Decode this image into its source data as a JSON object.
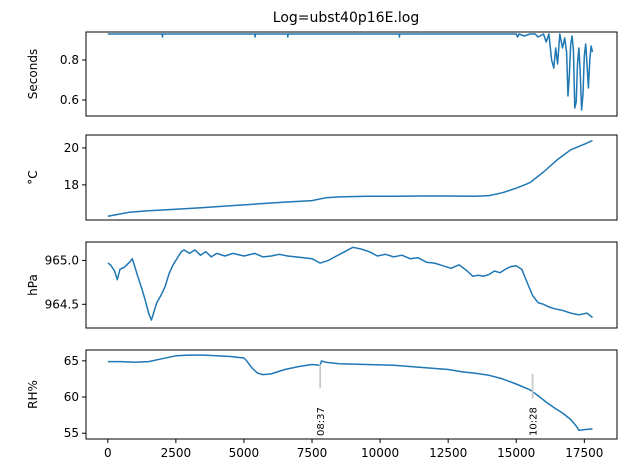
{
  "chart_data": {
    "title": "Log=ubst40p16E.log",
    "x_ticks": [
      0,
      2500,
      5000,
      7500,
      10000,
      12500,
      15000,
      17500
    ],
    "xlim": [
      -800,
      18700
    ],
    "panels": [
      {
        "type": "line",
        "ylabel": "Seconds",
        "ylim": [
          0.52,
          0.94
        ],
        "y_ticks": [
          0.6,
          0.8
        ],
        "y_tick_labels": [
          "0.6",
          "0.8"
        ],
        "points": [
          [
            0,
            0.93
          ],
          [
            2000,
            0.93
          ],
          [
            2010,
            0.915
          ],
          [
            2020,
            0.93
          ],
          [
            5400,
            0.93
          ],
          [
            5410,
            0.915
          ],
          [
            5420,
            0.93
          ],
          [
            6600,
            0.93
          ],
          [
            6610,
            0.915
          ],
          [
            6620,
            0.93
          ],
          [
            10700,
            0.93
          ],
          [
            10710,
            0.915
          ],
          [
            10720,
            0.93
          ],
          [
            15000,
            0.93
          ],
          [
            15050,
            0.915
          ],
          [
            15100,
            0.93
          ],
          [
            15300,
            0.92
          ],
          [
            15500,
            0.93
          ],
          [
            15700,
            0.93
          ],
          [
            15800,
            0.915
          ],
          [
            16000,
            0.93
          ],
          [
            16100,
            0.89
          ],
          [
            16200,
            0.93
          ],
          [
            16300,
            0.8
          ],
          [
            16380,
            0.76
          ],
          [
            16450,
            0.86
          ],
          [
            16520,
            0.78
          ],
          [
            16600,
            0.93
          ],
          [
            16700,
            0.86
          ],
          [
            16780,
            0.91
          ],
          [
            16850,
            0.84
          ],
          [
            16900,
            0.62
          ],
          [
            16950,
            0.72
          ],
          [
            17000,
            0.88
          ],
          [
            17050,
            0.92
          ],
          [
            17100,
            0.85
          ],
          [
            17150,
            0.56
          ],
          [
            17200,
            0.59
          ],
          [
            17250,
            0.78
          ],
          [
            17300,
            0.86
          ],
          [
            17350,
            0.74
          ],
          [
            17400,
            0.55
          ],
          [
            17450,
            0.63
          ],
          [
            17500,
            0.82
          ],
          [
            17550,
            0.88
          ],
          [
            17600,
            0.78
          ],
          [
            17650,
            0.66
          ],
          [
            17700,
            0.8
          ],
          [
            17750,
            0.87
          ],
          [
            17800,
            0.84
          ]
        ]
      },
      {
        "type": "line",
        "ylabel": "°C",
        "ylim": [
          16.1,
          20.7
        ],
        "y_ticks": [
          18,
          20
        ],
        "y_tick_labels": [
          "18",
          "20"
        ],
        "points": [
          [
            0,
            16.3
          ],
          [
            300,
            16.38
          ],
          [
            800,
            16.52
          ],
          [
            1500,
            16.6
          ],
          [
            2500,
            16.68
          ],
          [
            3500,
            16.77
          ],
          [
            4500,
            16.87
          ],
          [
            5500,
            16.97
          ],
          [
            6500,
            17.07
          ],
          [
            7500,
            17.15
          ],
          [
            8000,
            17.3
          ],
          [
            8500,
            17.35
          ],
          [
            9500,
            17.38
          ],
          [
            10500,
            17.38
          ],
          [
            11500,
            17.4
          ],
          [
            12500,
            17.4
          ],
          [
            13500,
            17.38
          ],
          [
            14000,
            17.42
          ],
          [
            14500,
            17.58
          ],
          [
            15000,
            17.82
          ],
          [
            15500,
            18.12
          ],
          [
            16000,
            18.7
          ],
          [
            16500,
            19.35
          ],
          [
            17000,
            19.9
          ],
          [
            17500,
            20.2
          ],
          [
            17800,
            20.4
          ]
        ]
      },
      {
        "type": "line",
        "ylabel": "hPa",
        "ylim": [
          964.23,
          965.21
        ],
        "y_ticks": [
          964.5,
          965.0
        ],
        "y_tick_labels": [
          "964.5",
          "965.0"
        ],
        "points": [
          [
            0,
            964.97
          ],
          [
            100,
            964.95
          ],
          [
            250,
            964.88
          ],
          [
            350,
            964.78
          ],
          [
            450,
            964.9
          ],
          [
            600,
            964.92
          ],
          [
            800,
            964.98
          ],
          [
            900,
            965.02
          ],
          [
            1000,
            964.92
          ],
          [
            1100,
            964.82
          ],
          [
            1250,
            964.68
          ],
          [
            1400,
            964.52
          ],
          [
            1500,
            964.4
          ],
          [
            1600,
            964.32
          ],
          [
            1700,
            964.42
          ],
          [
            1800,
            964.52
          ],
          [
            1950,
            964.6
          ],
          [
            2100,
            964.7
          ],
          [
            2250,
            964.85
          ],
          [
            2400,
            964.95
          ],
          [
            2600,
            965.05
          ],
          [
            2700,
            965.1
          ],
          [
            2800,
            965.12
          ],
          [
            3000,
            965.08
          ],
          [
            3200,
            965.12
          ],
          [
            3400,
            965.06
          ],
          [
            3600,
            965.1
          ],
          [
            3800,
            965.04
          ],
          [
            4000,
            965.08
          ],
          [
            4300,
            965.05
          ],
          [
            4600,
            965.08
          ],
          [
            5000,
            965.05
          ],
          [
            5400,
            965.08
          ],
          [
            5700,
            965.04
          ],
          [
            6000,
            965.05
          ],
          [
            6300,
            965.07
          ],
          [
            6600,
            965.05
          ],
          [
            6900,
            965.04
          ],
          [
            7200,
            965.03
          ],
          [
            7500,
            965.02
          ],
          [
            7800,
            964.97
          ],
          [
            8100,
            965.0
          ],
          [
            8400,
            965.05
          ],
          [
            8700,
            965.1
          ],
          [
            9000,
            965.15
          ],
          [
            9300,
            965.13
          ],
          [
            9600,
            965.1
          ],
          [
            9900,
            965.05
          ],
          [
            10200,
            965.07
          ],
          [
            10500,
            965.04
          ],
          [
            10800,
            965.06
          ],
          [
            11100,
            965.02
          ],
          [
            11400,
            965.03
          ],
          [
            11700,
            964.98
          ],
          [
            12000,
            964.97
          ],
          [
            12300,
            964.94
          ],
          [
            12600,
            964.91
          ],
          [
            12900,
            964.95
          ],
          [
            13200,
            964.88
          ],
          [
            13400,
            964.82
          ],
          [
            13600,
            964.83
          ],
          [
            13800,
            964.82
          ],
          [
            14000,
            964.84
          ],
          [
            14200,
            964.88
          ],
          [
            14400,
            964.86
          ],
          [
            14600,
            964.9
          ],
          [
            14800,
            964.93
          ],
          [
            15000,
            964.94
          ],
          [
            15200,
            964.9
          ],
          [
            15400,
            964.75
          ],
          [
            15600,
            964.6
          ],
          [
            15800,
            964.52
          ],
          [
            16000,
            964.5
          ],
          [
            16200,
            964.47
          ],
          [
            16400,
            964.45
          ],
          [
            16700,
            964.43
          ],
          [
            17000,
            964.4
          ],
          [
            17300,
            964.38
          ],
          [
            17600,
            964.4
          ],
          [
            17800,
            964.35
          ]
        ]
      },
      {
        "type": "line",
        "ylabel": "RH%",
        "ylim": [
          54.2,
          66.5
        ],
        "y_ticks": [
          55,
          60,
          65
        ],
        "y_tick_labels": [
          "55",
          "60",
          "65"
        ],
        "points": [
          [
            0,
            64.9
          ],
          [
            500,
            64.9
          ],
          [
            1000,
            64.8
          ],
          [
            1500,
            64.9
          ],
          [
            2000,
            65.3
          ],
          [
            2500,
            65.7
          ],
          [
            3000,
            65.8
          ],
          [
            3500,
            65.8
          ],
          [
            4000,
            65.7
          ],
          [
            4500,
            65.6
          ],
          [
            5000,
            65.4
          ],
          [
            5100,
            65.0
          ],
          [
            5300,
            64.0
          ],
          [
            5500,
            63.3
          ],
          [
            5700,
            63.1
          ],
          [
            6000,
            63.2
          ],
          [
            6500,
            63.8
          ],
          [
            7000,
            64.2
          ],
          [
            7500,
            64.5
          ],
          [
            7800,
            64.4
          ],
          [
            7850,
            65.0
          ],
          [
            8000,
            64.8
          ],
          [
            8500,
            64.6
          ],
          [
            9500,
            64.5
          ],
          [
            10500,
            64.4
          ],
          [
            11500,
            64.1
          ],
          [
            12500,
            63.8
          ],
          [
            13000,
            63.5
          ],
          [
            13500,
            63.3
          ],
          [
            14000,
            63.0
          ],
          [
            14500,
            62.5
          ],
          [
            15000,
            61.8
          ],
          [
            15500,
            61.0
          ],
          [
            15800,
            60.2
          ],
          [
            16100,
            59.3
          ],
          [
            16400,
            58.5
          ],
          [
            16700,
            57.8
          ],
          [
            17000,
            56.9
          ],
          [
            17200,
            56.0
          ],
          [
            17300,
            55.4
          ],
          [
            17500,
            55.5
          ],
          [
            17800,
            55.6
          ]
        ]
      }
    ],
    "annotations": [
      {
        "text": "08:37",
        "x": 7800,
        "line_top": 64.5,
        "line_bottom": 61.2
      },
      {
        "text": "10:28",
        "x": 15600,
        "line_top": 63.2,
        "line_bottom": 59.8
      }
    ],
    "series_color": "#1f77b4",
    "marker_color": "#c8c8c8",
    "grid": false
  }
}
